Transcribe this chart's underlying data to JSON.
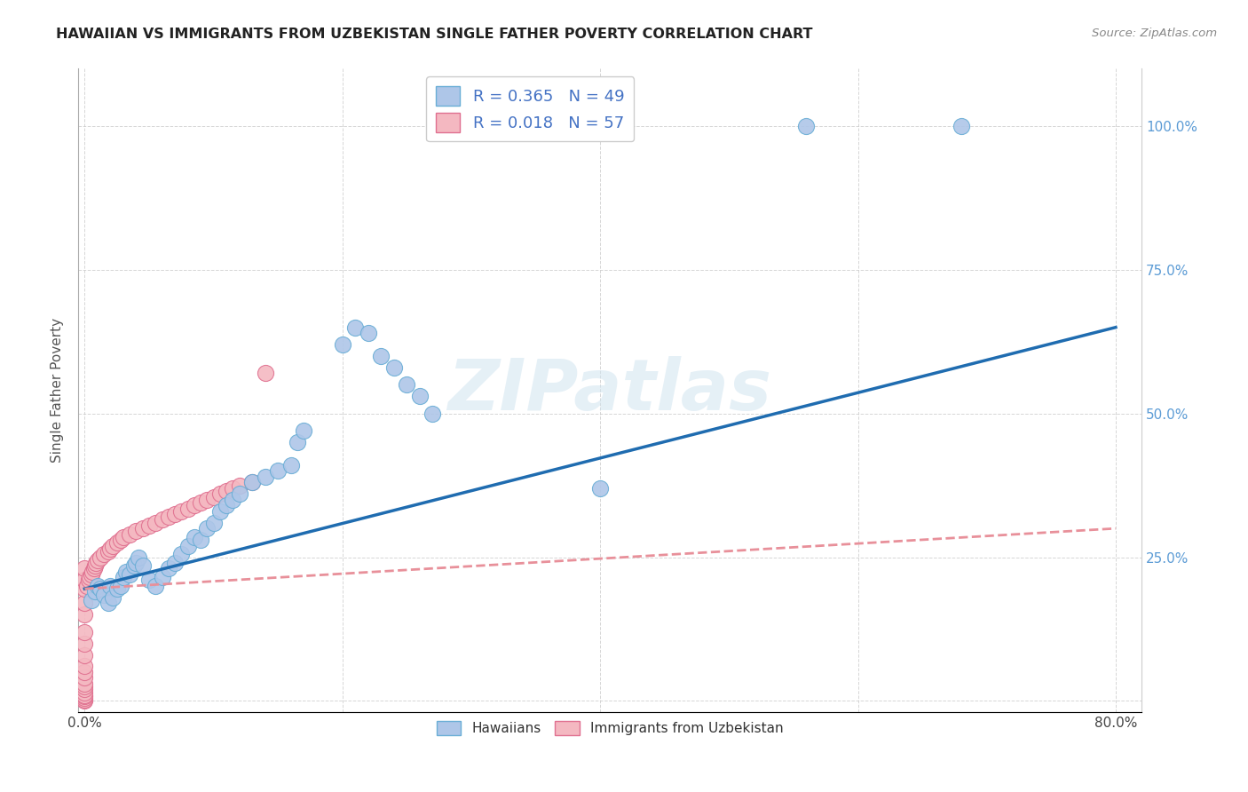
{
  "title": "HAWAIIAN VS IMMIGRANTS FROM UZBEKISTAN SINGLE FATHER POVERTY CORRELATION CHART",
  "source": "Source: ZipAtlas.com",
  "ylabel": "Single Father Poverty",
  "hawaiians_color": "#aec6e8",
  "hawaiians_edge": "#6aaed6",
  "uzbekistan_color": "#f4b8c1",
  "uzbekistan_edge": "#e07090",
  "regression_hawaii_color": "#1f6cb0",
  "regression_uzbekistan_color": "#e8909a",
  "R_hawaii": 0.365,
  "N_hawaii": 49,
  "R_uzbekistan": 0.018,
  "N_uzbekistan": 57,
  "watermark": "ZIPatlas",
  "hawaii_x": [
    0.005,
    0.008,
    0.01,
    0.012,
    0.015,
    0.018,
    0.02,
    0.022,
    0.025,
    0.028,
    0.03,
    0.032,
    0.035,
    0.038,
    0.04,
    0.042,
    0.045,
    0.05,
    0.055,
    0.06,
    0.065,
    0.07,
    0.075,
    0.08,
    0.085,
    0.09,
    0.095,
    0.1,
    0.105,
    0.11,
    0.115,
    0.12,
    0.13,
    0.14,
    0.15,
    0.16,
    0.165,
    0.17,
    0.2,
    0.21,
    0.22,
    0.23,
    0.24,
    0.25,
    0.26,
    0.27,
    0.4,
    0.56,
    0.68
  ],
  "hawaii_y": [
    0.175,
    0.19,
    0.2,
    0.195,
    0.185,
    0.17,
    0.2,
    0.18,
    0.195,
    0.2,
    0.215,
    0.225,
    0.22,
    0.235,
    0.24,
    0.25,
    0.235,
    0.21,
    0.2,
    0.215,
    0.23,
    0.24,
    0.255,
    0.27,
    0.285,
    0.28,
    0.3,
    0.31,
    0.33,
    0.34,
    0.35,
    0.36,
    0.38,
    0.39,
    0.4,
    0.41,
    0.45,
    0.47,
    0.62,
    0.65,
    0.64,
    0.6,
    0.58,
    0.55,
    0.53,
    0.5,
    0.37,
    1.0,
    1.0
  ],
  "uzbek_x": [
    0.0,
    0.0,
    0.0,
    0.0,
    0.0,
    0.0,
    0.0,
    0.0,
    0.0,
    0.0,
    0.0,
    0.0,
    0.0,
    0.0,
    0.0,
    0.0,
    0.0,
    0.0,
    0.0,
    0.0,
    0.002,
    0.003,
    0.004,
    0.005,
    0.006,
    0.007,
    0.008,
    0.009,
    0.01,
    0.012,
    0.015,
    0.018,
    0.02,
    0.022,
    0.025,
    0.028,
    0.03,
    0.035,
    0.04,
    0.045,
    0.05,
    0.055,
    0.06,
    0.065,
    0.07,
    0.075,
    0.08,
    0.085,
    0.09,
    0.095,
    0.1,
    0.105,
    0.11,
    0.115,
    0.12,
    0.13,
    0.14
  ],
  "uzbek_y": [
    0.0,
    0.002,
    0.005,
    0.008,
    0.01,
    0.015,
    0.02,
    0.025,
    0.03,
    0.04,
    0.05,
    0.06,
    0.08,
    0.1,
    0.12,
    0.15,
    0.17,
    0.195,
    0.21,
    0.23,
    0.2,
    0.21,
    0.215,
    0.22,
    0.225,
    0.23,
    0.235,
    0.24,
    0.245,
    0.25,
    0.255,
    0.26,
    0.265,
    0.27,
    0.275,
    0.28,
    0.285,
    0.29,
    0.295,
    0.3,
    0.305,
    0.31,
    0.315,
    0.32,
    0.325,
    0.33,
    0.335,
    0.34,
    0.345,
    0.35,
    0.355,
    0.36,
    0.365,
    0.37,
    0.375,
    0.38,
    0.57
  ],
  "xlim": [
    -0.005,
    0.82
  ],
  "ylim": [
    -0.02,
    1.1
  ],
  "x_ticks": [
    0.0,
    0.2,
    0.4,
    0.6,
    0.8
  ],
  "x_tick_labels": [
    "0.0%",
    "",
    "",
    "",
    "80.0%"
  ],
  "y_ticks": [
    0.0,
    0.25,
    0.5,
    0.75,
    1.0
  ],
  "y_tick_labels_right": [
    "",
    "25.0%",
    "50.0%",
    "75.0%",
    "100.0%"
  ]
}
